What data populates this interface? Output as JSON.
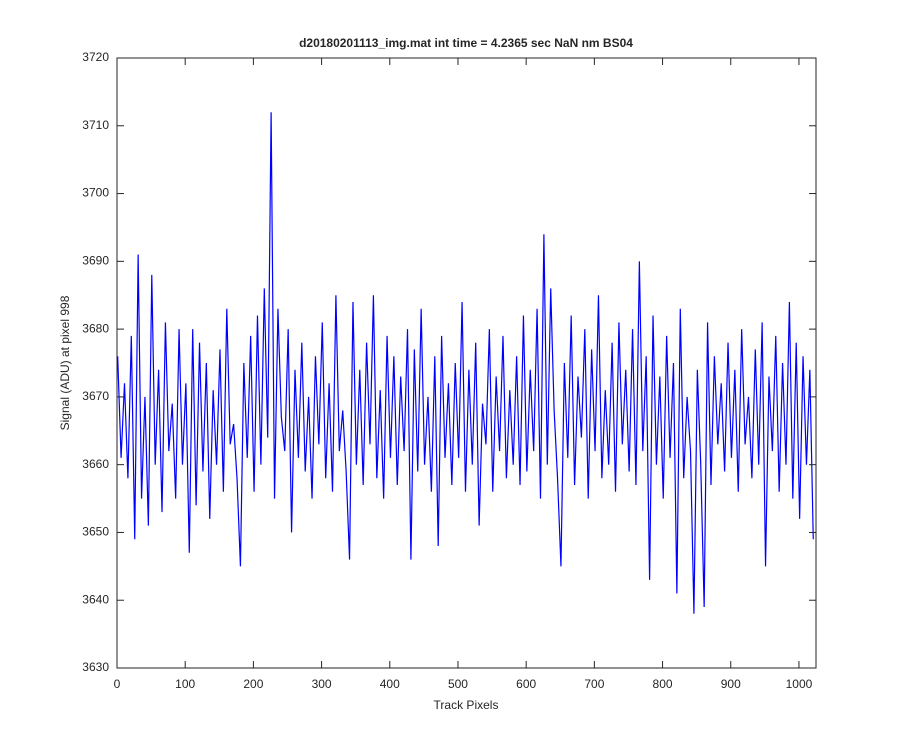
{
  "chart_data": {
    "type": "line",
    "title": "d20180201113_img.mat int time = 4.2365 sec  NaN nm BS04",
    "xlabel": "Track Pixels",
    "ylabel": "Signal (ADU) at pixel 998",
    "color": "#0000ff",
    "xlim": [
      0,
      1025
    ],
    "ylim": [
      3630,
      3720
    ],
    "xticks": [
      0,
      100,
      200,
      300,
      400,
      500,
      600,
      700,
      800,
      900,
      1000
    ],
    "yticks": [
      3630,
      3640,
      3650,
      3660,
      3670,
      3680,
      3690,
      3700,
      3710,
      3720
    ],
    "x": [
      1,
      6,
      11,
      16,
      21,
      26,
      31,
      36,
      41,
      46,
      51,
      56,
      61,
      66,
      71,
      76,
      81,
      86,
      91,
      96,
      101,
      106,
      111,
      116,
      121,
      126,
      131,
      136,
      141,
      146,
      151,
      156,
      161,
      166,
      171,
      176,
      181,
      186,
      191,
      196,
      201,
      206,
      211,
      216,
      221,
      226,
      231,
      236,
      241,
      246,
      251,
      256,
      261,
      266,
      271,
      276,
      281,
      286,
      291,
      296,
      301,
      306,
      311,
      316,
      321,
      326,
      331,
      336,
      341,
      346,
      351,
      356,
      361,
      366,
      371,
      376,
      381,
      386,
      391,
      396,
      401,
      406,
      411,
      416,
      421,
      426,
      431,
      436,
      441,
      446,
      451,
      456,
      461,
      466,
      471,
      476,
      481,
      486,
      491,
      496,
      501,
      506,
      511,
      516,
      521,
      526,
      531,
      536,
      541,
      546,
      551,
      556,
      561,
      566,
      571,
      576,
      581,
      586,
      591,
      596,
      601,
      606,
      611,
      616,
      621,
      626,
      631,
      636,
      641,
      646,
      651,
      656,
      661,
      666,
      671,
      676,
      681,
      686,
      691,
      696,
      701,
      706,
      711,
      716,
      721,
      726,
      731,
      736,
      741,
      746,
      751,
      756,
      761,
      766,
      771,
      776,
      781,
      786,
      791,
      796,
      801,
      806,
      811,
      816,
      821,
      826,
      831,
      836,
      841,
      846,
      851,
      856,
      861,
      866,
      871,
      876,
      881,
      886,
      891,
      896,
      901,
      906,
      911,
      916,
      921,
      926,
      931,
      936,
      941,
      946,
      951,
      956,
      961,
      966,
      971,
      976,
      981,
      986,
      991,
      996,
      1001,
      1006,
      1011,
      1016,
      1021
    ],
    "values": [
      3676,
      3661,
      3672,
      3658,
      3679,
      3649,
      3691,
      3655,
      3670,
      3651,
      3688,
      3660,
      3674,
      3653,
      3681,
      3662,
      3669,
      3655,
      3680,
      3660,
      3672,
      3647,
      3680,
      3654,
      3678,
      3659,
      3675,
      3652,
      3671,
      3660,
      3677,
      3656,
      3683,
      3663,
      3666,
      3658,
      3645,
      3675,
      3661,
      3679,
      3656,
      3682,
      3660,
      3686,
      3664,
      3712,
      3655,
      3683,
      3667,
      3662,
      3680,
      3650,
      3674,
      3661,
      3678,
      3659,
      3670,
      3655,
      3676,
      3663,
      3681,
      3658,
      3672,
      3656,
      3685,
      3662,
      3668,
      3659,
      3646,
      3684,
      3660,
      3674,
      3657,
      3678,
      3663,
      3685,
      3658,
      3671,
      3655,
      3679,
      3661,
      3676,
      3657,
      3673,
      3662,
      3680,
      3646,
      3677,
      3659,
      3683,
      3660,
      3670,
      3656,
      3676,
      3648,
      3679,
      3661,
      3672,
      3657,
      3675,
      3661,
      3684,
      3656,
      3674,
      3660,
      3678,
      3651,
      3669,
      3663,
      3680,
      3656,
      3673,
      3662,
      3679,
      3658,
      3671,
      3660,
      3676,
      3657,
      3682,
      3659,
      3674,
      3662,
      3683,
      3655,
      3694,
      3660,
      3686,
      3668,
      3658,
      3645,
      3675,
      3661,
      3682,
      3657,
      3673,
      3664,
      3680,
      3655,
      3677,
      3662,
      3685,
      3658,
      3671,
      3660,
      3678,
      3656,
      3681,
      3663,
      3674,
      3659,
      3680,
      3657,
      3690,
      3662,
      3676,
      3643,
      3682,
      3660,
      3673,
      3655,
      3679,
      3661,
      3675,
      3641,
      3683,
      3658,
      3670,
      3662,
      3638,
      3674,
      3660,
      3639,
      3681,
      3657,
      3676,
      3663,
      3672,
      3659,
      3678,
      3661,
      3674,
      3656,
      3680,
      3663,
      3670,
      3658,
      3677,
      3660,
      3681,
      3645,
      3673,
      3662,
      3679,
      3656,
      3675,
      3660,
      3684,
      3655,
      3678,
      3652,
      3676,
      3660,
      3674,
      3649
    ]
  }
}
